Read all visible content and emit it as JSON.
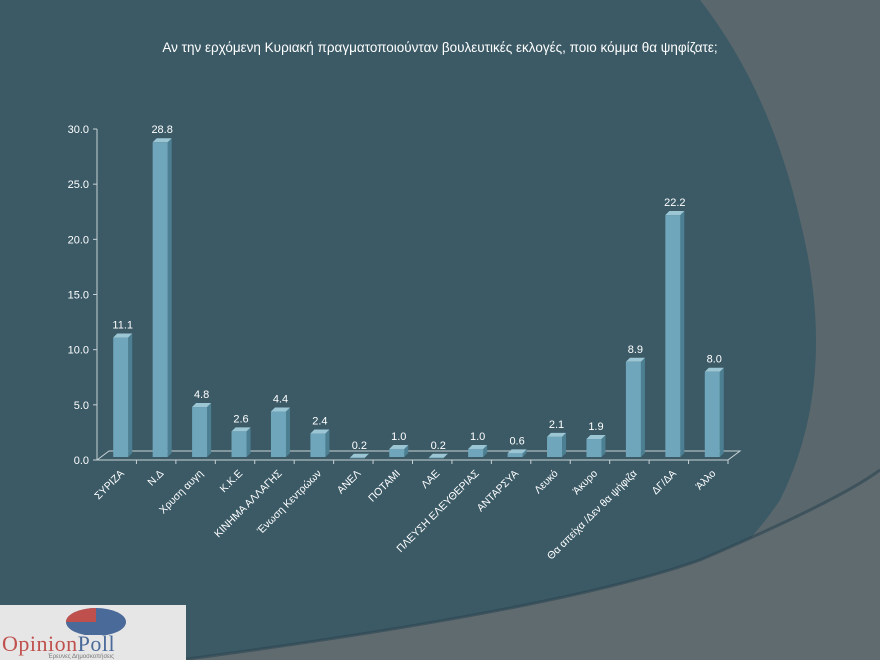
{
  "title": "Αν την ερχόμενη Κυριακή πραγματοποιούνταν βουλευτικές εκλογές, ποιο κόμμα θα ψηφίζατε;",
  "colors": {
    "background": "#3b5a66",
    "bar": "#6fa6bb",
    "curve": "#5e6a70",
    "text": "#ffffff"
  },
  "chart_data": {
    "type": "bar",
    "title": "Αν την ερχόμενη Κυριακή πραγματοποιούνταν βουλευτικές εκλογές, ποιο κόμμα θα ψηφίζατε;",
    "categories": [
      "ΣΥΡΙΖΑ",
      "Ν.Δ",
      "Χρυση αυγη",
      "Κ.Κ.Ε",
      "ΚΙΝΗΜΑ ΑΛΛΑΓΗΣ",
      "Ένωση Κεντρώων",
      "ΑΝΕΛ",
      "ΠΟΤΑΜΙ",
      "ΛΑΕ",
      "ΠΛΕΥΣΗ ΕΛΕΥΘΕΡΙΑΣ",
      "ΑΝΤΑΡΣΥΑ",
      "Λευκό",
      "Άκυρο",
      "Θα απείχα /Δεν θα ψήφιζα",
      "ΔΓ/ΔΑ",
      "Άλλο"
    ],
    "values": [
      11.1,
      28.8,
      4.8,
      2.6,
      4.4,
      2.4,
      0.2,
      1.0,
      0.2,
      1.0,
      0.6,
      2.1,
      1.9,
      8.9,
      22.2,
      8.0
    ],
    "value_labels": [
      "11.1",
      "28.8",
      "4.8",
      "2.6",
      "4.4",
      "2.4",
      "0.2",
      "1.0",
      "0.2",
      "1.0",
      "0.6",
      "2.1",
      "1.9",
      "8.9",
      "22.2",
      "8.0"
    ],
    "yticks": [
      "0.0",
      "5.0",
      "10.0",
      "15.0",
      "20.0",
      "25.0",
      "30.0"
    ],
    "ylim": [
      0,
      30
    ],
    "xlabel": "",
    "ylabel": "",
    "style": "3d-column",
    "grid": false,
    "legend": "none"
  },
  "logo": {
    "name_part1": "Opinion",
    "name_part2": "Poll",
    "subtitle": "Έρευνες Δημοσκοπήσεις"
  }
}
